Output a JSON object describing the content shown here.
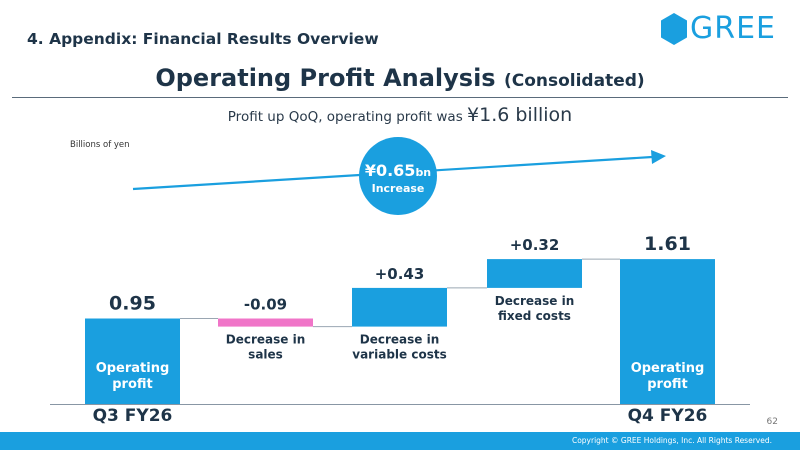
{
  "header": {
    "section_title": "4. Appendix: Financial Results Overview",
    "logo_text": "GREE",
    "title": "Operating Profit Analysis",
    "title_suffix": "(Consolidated)",
    "summary_prefix": "Profit up QoQ, operating profit was",
    "summary_value": "¥1.6 billion"
  },
  "chart_data": {
    "type": "waterfall",
    "unit": "Billions of yen",
    "highlight": {
      "value": "¥0.65",
      "unit": "bn",
      "label": "Increase"
    },
    "steps": [
      {
        "kind": "total",
        "value": 0.95,
        "value_label": "0.95",
        "inner_label": "Operating\nprofit",
        "category": "Q3 FY26"
      },
      {
        "kind": "delta",
        "value": -0.09,
        "value_label": "-0.09",
        "caption": "Decrease in\nsales"
      },
      {
        "kind": "delta",
        "value": 0.43,
        "value_label": "+0.43",
        "caption": "Decrease in\nvariable costs"
      },
      {
        "kind": "delta",
        "value": 0.32,
        "value_label": "+0.32",
        "caption": "Decrease in\nfixed costs"
      },
      {
        "kind": "total",
        "value": 1.61,
        "value_label": "1.61",
        "inner_label": "Operating\nprofit",
        "category": "Q4 FY26"
      }
    ],
    "colors": {
      "positive": "#1a9fdf",
      "negative": "#f075c8",
      "total": "#1a9fdf",
      "arrow": "#1a9fdf",
      "circle": "#1a9fdf"
    }
  },
  "footer": {
    "page_number": "62",
    "copyright": "Copyright © GREE Holdings, Inc. All Rights Reserved."
  }
}
